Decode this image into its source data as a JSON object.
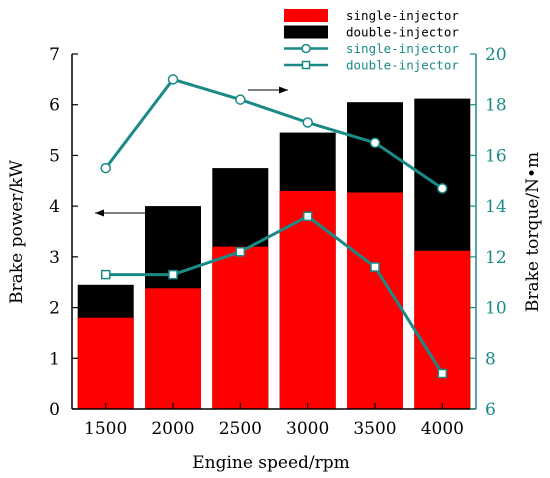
{
  "chart_data": {
    "type": "bar+line",
    "categories": [
      "1500",
      "2000",
      "2500",
      "3000",
      "3500",
      "4000"
    ],
    "xlabel": "Engine speed/rpm",
    "ylabel_left": "Brake power/kW",
    "ylabel_right": "Brake torque/N•m",
    "ylim_left": [
      0,
      7
    ],
    "yticks_left": [
      "0",
      "1",
      "2",
      "3",
      "4",
      "5",
      "6",
      "7"
    ],
    "ylim_right": [
      6,
      20
    ],
    "yticks_right": [
      "6",
      "8",
      "10",
      "12",
      "14",
      "16",
      "18",
      "20"
    ],
    "bars": [
      {
        "name": "single-injector",
        "color": "#ff0000",
        "values": [
          1.8,
          2.38,
          3.2,
          4.3,
          4.27,
          3.12
        ]
      },
      {
        "name": "double-injector",
        "color": "#000000",
        "values": [
          2.45,
          4.0,
          4.75,
          5.45,
          6.05,
          6.12
        ]
      }
    ],
    "lines": [
      {
        "name": "single-injector",
        "color": "#1a8a87",
        "marker": "circle",
        "values": [
          15.5,
          19.0,
          18.2,
          17.3,
          16.5,
          14.7
        ]
      },
      {
        "name": "double-injector",
        "color": "#1a8a87",
        "marker": "square",
        "values": [
          11.3,
          11.3,
          12.2,
          13.6,
          11.6,
          7.4
        ]
      }
    ],
    "annotations": [
      {
        "type": "arrow",
        "direction": "right",
        "target_axis": "right"
      },
      {
        "type": "arrow",
        "direction": "left",
        "target_axis": "left"
      }
    ],
    "grid": false,
    "legend_position": "top-right"
  }
}
